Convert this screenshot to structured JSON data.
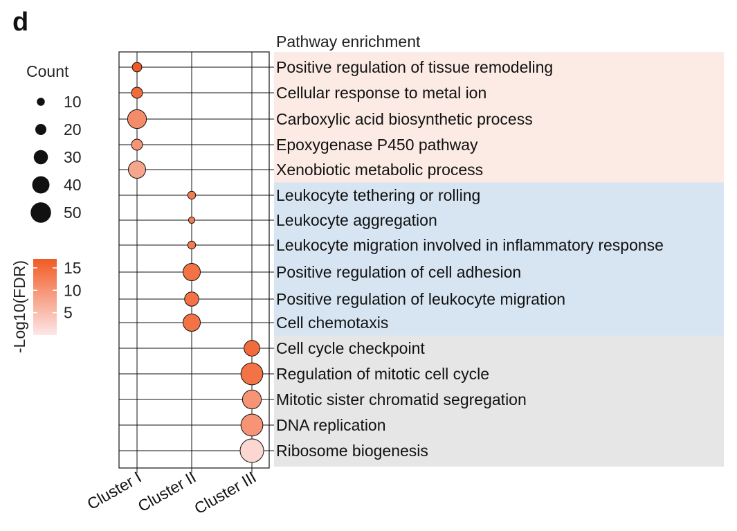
{
  "panel_label": "d",
  "chart_data": {
    "type": "scatter",
    "title": "Pathway enrichment",
    "clusters": [
      "Cluster I",
      "Cluster II",
      "Cluster III"
    ],
    "pathways": [
      "Positive regulation of tissue remodeling",
      "Cellular response to metal ion",
      "Carboxylic acid biosynthetic process",
      "Epoxygenase P450 pathway",
      "Xenobiotic metabolic process",
      "Leukocyte tethering or rolling",
      "Leukocyte aggregation",
      "Leukocyte migration involved in inflammatory response",
      "Positive regulation of cell adhesion",
      "Positive regulation of leukocyte migration",
      "Cell chemotaxis",
      "Cell cycle checkpoint",
      "Regulation of mitotic cell cycle",
      "Mitotic sister chromatid segregation",
      "DNA replication",
      "Ribosome biogenesis"
    ],
    "points": [
      {
        "pathway": "Positive regulation of tissue remodeling",
        "cluster": "Cluster I",
        "count": 15,
        "neg_log10_fdr": 17
      },
      {
        "pathway": "Cellular response to metal ion",
        "cluster": "Cluster I",
        "count": 20,
        "neg_log10_fdr": 15
      },
      {
        "pathway": "Carboxylic acid biosynthetic process",
        "cluster": "Cluster I",
        "count": 45,
        "neg_log10_fdr": 11
      },
      {
        "pathway": "Epoxygenase P450 pathway",
        "cluster": "Cluster I",
        "count": 20,
        "neg_log10_fdr": 10
      },
      {
        "pathway": "Xenobiotic metabolic process",
        "cluster": "Cluster I",
        "count": 40,
        "neg_log10_fdr": 8
      },
      {
        "pathway": "Leukocyte tethering or rolling",
        "cluster": "Cluster II",
        "count": 10,
        "neg_log10_fdr": 13
      },
      {
        "pathway": "Leukocyte aggregation",
        "cluster": "Cluster II",
        "count": 5,
        "neg_log10_fdr": 13
      },
      {
        "pathway": "Leukocyte migration involved in inflammatory response",
        "cluster": "Cluster II",
        "count": 10,
        "neg_log10_fdr": 13
      },
      {
        "pathway": "Positive regulation of cell adhesion",
        "cluster": "Cluster II",
        "count": 40,
        "neg_log10_fdr": 14
      },
      {
        "pathway": "Positive regulation of leukocyte migration",
        "cluster": "Cluster II",
        "count": 30,
        "neg_log10_fdr": 14
      },
      {
        "pathway": "Cell chemotaxis",
        "cluster": "Cluster II",
        "count": 40,
        "neg_log10_fdr": 14
      },
      {
        "pathway": "Cell cycle checkpoint",
        "cluster": "Cluster III",
        "count": 35,
        "neg_log10_fdr": 15
      },
      {
        "pathway": "Regulation of mitotic cell cycle",
        "cluster": "Cluster III",
        "count": 55,
        "neg_log10_fdr": 14
      },
      {
        "pathway": "Mitotic sister chromatid segregation",
        "cluster": "Cluster III",
        "count": 45,
        "neg_log10_fdr": 10
      },
      {
        "pathway": "DNA replication",
        "cluster": "Cluster III",
        "count": 55,
        "neg_log10_fdr": 10
      },
      {
        "pathway": "Ribosome biogenesis",
        "cluster": "Cluster III",
        "count": 60,
        "neg_log10_fdr": 2
      }
    ],
    "groups": [
      {
        "from": 0,
        "to": 4,
        "color": "#fbebe4"
      },
      {
        "from": 5,
        "to": 10,
        "color": "#d7e5f2"
      },
      {
        "from": 11,
        "to": 15,
        "color": "#e6e6e6"
      }
    ],
    "size_legend": {
      "title": "Count",
      "values": [
        "10",
        "20",
        "30",
        "40",
        "50"
      ]
    },
    "color_legend": {
      "title": "-Log10(FDR)",
      "ticks": [
        "15",
        "10",
        "5"
      ],
      "low_color": "#fde7e8",
      "high_color": "#f15a24"
    }
  }
}
